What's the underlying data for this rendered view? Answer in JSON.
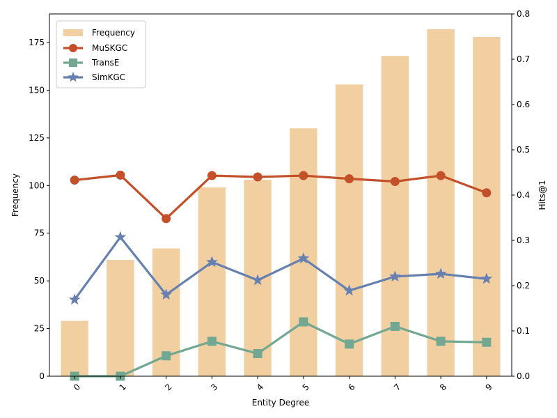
{
  "chart_data": {
    "type": "bar",
    "xlabel": "Entity Degree",
    "ylabel_left": "Frequency",
    "ylabel_right": "Hits@1",
    "categories": [
      "0",
      "1",
      "2",
      "3",
      "4",
      "5",
      "6",
      "7",
      "8",
      "9"
    ],
    "left_ylim": [
      0,
      190
    ],
    "left_ticks": [
      0,
      25,
      50,
      75,
      100,
      125,
      150,
      175
    ],
    "right_ylim": [
      0,
      0.8
    ],
    "right_ticks": [
      "0.0",
      "0.1",
      "0.2",
      "0.3",
      "0.4",
      "0.5",
      "0.6",
      "0.7",
      "0.8"
    ],
    "bars": {
      "name": "Frequency",
      "color": "#f2cfa0",
      "values": [
        29,
        61,
        67,
        99,
        103,
        130,
        153,
        168,
        182,
        178
      ]
    },
    "series": [
      {
        "name": "MuSKGC",
        "color": "#c4502a",
        "marker": "circle",
        "values": [
          0.433,
          0.444,
          0.348,
          0.443,
          0.44,
          0.443,
          0.436,
          0.43,
          0.443,
          0.405
        ]
      },
      {
        "name": "TransE",
        "color": "#72a892",
        "marker": "square",
        "values": [
          0.0,
          0.0,
          0.045,
          0.077,
          0.05,
          0.12,
          0.071,
          0.11,
          0.077,
          0.075
        ]
      },
      {
        "name": "SimKGC",
        "color": "#6680b0",
        "marker": "star",
        "values": [
          0.169,
          0.307,
          0.18,
          0.252,
          0.212,
          0.26,
          0.189,
          0.22,
          0.226,
          0.215
        ]
      }
    ],
    "legend_position": "top-left",
    "grid": false
  }
}
